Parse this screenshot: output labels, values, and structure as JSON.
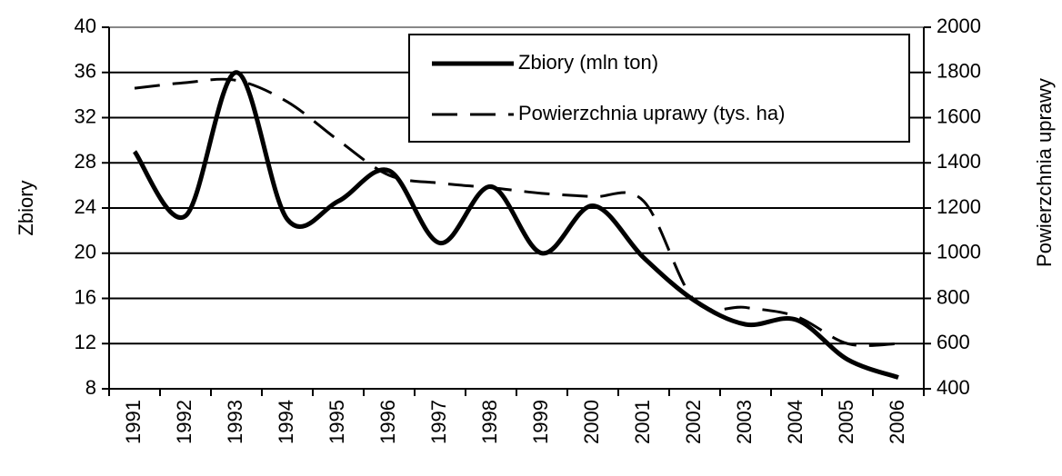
{
  "chart_data": {
    "type": "line",
    "categories": [
      "1991",
      "1992",
      "1993",
      "1994",
      "1995",
      "1996",
      "1997",
      "1998",
      "1999",
      "2000",
      "2001",
      "2002",
      "2003",
      "2004",
      "2005",
      "2006"
    ],
    "series": [
      {
        "name": "Zbiory (mln ton)",
        "color": "#000000",
        "dash": "solid",
        "values": [
          29,
          23.3,
          36,
          23,
          24.6,
          27.3,
          20.9,
          25.9,
          20,
          24.2,
          19.6,
          15.8,
          13.7,
          14.1,
          10.6,
          9
        ]
      },
      {
        "name": "Powierzchnia uprawy (tys. ha)",
        "color": "#000000",
        "dash": "dashed",
        "axis": "y2",
        "values": [
          1730,
          1755,
          1765,
          1670,
          1500,
          1345,
          1310,
          1290,
          1265,
          1250,
          1230,
          790,
          760,
          720,
          600,
          600
        ]
      }
    ],
    "ylabel": "Zbiory",
    "y2label": "Powierzchnia uprawy",
    "ylim": [
      8,
      40
    ],
    "yticks": [
      8,
      12,
      16,
      20,
      24,
      28,
      32,
      36,
      40
    ],
    "y2lim": [
      400,
      2000
    ],
    "y2ticks": [
      400,
      600,
      800,
      1000,
      1200,
      1400,
      1600,
      1800,
      2000
    ],
    "grid": true,
    "legend": "top-right"
  }
}
